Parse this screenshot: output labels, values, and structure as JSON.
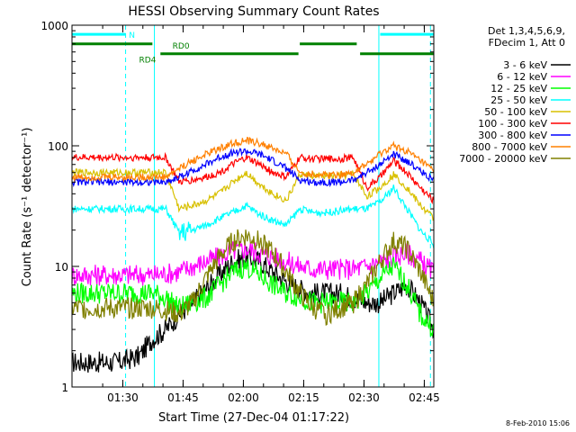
{
  "chart_data": {
    "type": "line",
    "title": "HESSI Observing Summary Count Rates",
    "xlabel": "Start Time (27-Dec-04 01:17:22)",
    "ylabel": "Count Rate (s⁻¹ detector⁻¹)",
    "y_scale": "log",
    "ylim": [
      1,
      1000
    ],
    "xlim": [
      0,
      5400
    ],
    "x_unit": "seconds since 01:17:22",
    "x_ticks": [
      {
        "t": 758,
        "label": "01:30"
      },
      {
        "t": 1658,
        "label": "01:45"
      },
      {
        "t": 2558,
        "label": "02:00"
      },
      {
        "t": 3458,
        "label": "02:15"
      },
      {
        "t": 4358,
        "label": "02:30"
      },
      {
        "t": 5258,
        "label": "02:45"
      }
    ],
    "y_ticks": [
      {
        "v": 1,
        "label": "1"
      },
      {
        "v": 10,
        "label": "10"
      },
      {
        "v": 100,
        "label": "100"
      },
      {
        "v": 1000,
        "label": "1000"
      }
    ],
    "legend": {
      "position": "right",
      "header": [
        "Det 1,3,4,5,6,9,",
        "FDecim 1, Att 0"
      ],
      "entries": [
        {
          "label": "3 - 6 keV",
          "color": "#000000"
        },
        {
          "label": "6 - 12 keV",
          "color": "#ff00ff"
        },
        {
          "label": "12 - 25 keV",
          "color": "#00ff00"
        },
        {
          "label": "25 - 50 keV",
          "color": "#00ffff"
        },
        {
          "label": "50 - 100 keV",
          "color": "#d8c000"
        },
        {
          "label": "100 - 300 keV",
          "color": "#ff0000"
        },
        {
          "label": "300 - 800 keV",
          "color": "#0000ff"
        },
        {
          "label": "800 - 7000 keV",
          "color": "#ff8000"
        },
        {
          "label": "7000 - 20000 keV",
          "color": "#808000"
        }
      ]
    },
    "series": [
      {
        "name": "3 - 6 keV",
        "color": "#000000",
        "x": [
          0,
          400,
          700,
          1000,
          1200,
          1400,
          1600,
          1800,
          2000,
          2200,
          2400,
          2600,
          2800,
          3000,
          3200,
          3400,
          3600,
          3800,
          4000,
          4200,
          4400,
          4600,
          4800,
          5000,
          5200,
          5400
        ],
        "y": [
          1.6,
          1.6,
          1.6,
          1.8,
          2.5,
          3,
          4,
          5,
          6.5,
          8.5,
          11,
          12,
          11,
          9,
          7.5,
          6.5,
          6,
          6,
          6,
          5.5,
          5,
          5,
          6,
          7,
          5,
          3
        ]
      },
      {
        "name": "6 - 12 keV",
        "color": "#ff00ff",
        "x": [
          0,
          800,
          1200,
          1400,
          1600,
          1800,
          2000,
          2200,
          2400,
          2600,
          2800,
          3000,
          3200,
          3400,
          3600,
          3800,
          4000,
          4200,
          4400,
          4600,
          4800,
          5000,
          5200,
          5400
        ],
        "y": [
          8.5,
          8.5,
          8.5,
          8.7,
          9,
          10,
          11,
          12,
          13.5,
          14,
          13,
          12,
          11,
          10,
          9.5,
          9.5,
          9.5,
          9.5,
          10,
          11,
          12,
          13,
          11,
          9
        ]
      },
      {
        "name": "12 - 25 keV",
        "color": "#00ff00",
        "x": [
          0,
          800,
          1200,
          1400,
          1600,
          1800,
          2000,
          2200,
          2400,
          2600,
          2800,
          3000,
          3200,
          3400,
          3600,
          3800,
          4000,
          4200,
          4400,
          4600,
          4800,
          5000,
          5200,
          5400
        ],
        "y": [
          6,
          6,
          6,
          5.5,
          4.5,
          5,
          5.5,
          7,
          9,
          10,
          8.5,
          7,
          6,
          5.5,
          5,
          5,
          5,
          5,
          6,
          8,
          10,
          7,
          4,
          3
        ]
      },
      {
        "name": "25 - 50 keV",
        "color": "#00ffff",
        "x": [
          0,
          800,
          1200,
          1400,
          1600,
          1800,
          2000,
          2200,
          2400,
          2600,
          2800,
          3000,
          3200,
          3400,
          3600,
          3800,
          4000,
          4200,
          4400,
          4600,
          4800,
          5000,
          5200,
          5400
        ],
        "y": [
          30,
          30,
          30,
          30,
          19,
          20,
          22,
          25,
          28,
          32,
          27,
          24,
          22,
          30,
          28,
          28,
          29,
          30,
          30,
          34,
          45,
          30,
          20,
          15
        ]
      },
      {
        "name": "50 - 100 keV",
        "color": "#d8c000",
        "x": [
          0,
          800,
          1200,
          1400,
          1600,
          1800,
          2000,
          2200,
          2400,
          2600,
          2800,
          3000,
          3200,
          3400,
          3600,
          3800,
          4000,
          4200,
          4400,
          4600,
          4800,
          5000,
          5200,
          5400
        ],
        "y": [
          60,
          60,
          60,
          60,
          30,
          32,
          35,
          40,
          50,
          60,
          48,
          40,
          35,
          58,
          56,
          56,
          56,
          58,
          38,
          45,
          58,
          45,
          32,
          25
        ]
      },
      {
        "name": "100 - 300 keV",
        "color": "#ff0000",
        "x": [
          0,
          800,
          1200,
          1400,
          1600,
          1800,
          2000,
          2200,
          2400,
          2600,
          2800,
          3000,
          3200,
          3400,
          3600,
          3800,
          4000,
          4200,
          4400,
          4600,
          4800,
          5000,
          5200,
          5400
        ],
        "y": [
          80,
          80,
          80,
          80,
          50,
          52,
          55,
          60,
          70,
          80,
          70,
          60,
          55,
          80,
          78,
          78,
          78,
          80,
          45,
          55,
          75,
          60,
          45,
          35
        ]
      },
      {
        "name": "300 - 800 keV",
        "color": "#0000ff",
        "x": [
          0,
          800,
          1200,
          1400,
          1600,
          1800,
          2000,
          2200,
          2400,
          2600,
          2800,
          3000,
          3200,
          3400,
          3600,
          3800,
          4000,
          4200,
          4400,
          4600,
          4800,
          5000,
          5200,
          5400
        ],
        "y": [
          50,
          50,
          50,
          50,
          55,
          62,
          70,
          80,
          88,
          90,
          85,
          75,
          65,
          52,
          50,
          50,
          50,
          52,
          60,
          70,
          85,
          75,
          62,
          52
        ]
      },
      {
        "name": "800 - 7000 keV",
        "color": "#ff8000",
        "x": [
          0,
          800,
          1200,
          1400,
          1600,
          1800,
          2000,
          2200,
          2400,
          2600,
          2800,
          3000,
          3200,
          3400,
          3600,
          3800,
          4000,
          4200,
          4400,
          4600,
          4800,
          5000,
          5200,
          5400
        ],
        "y": [
          55,
          55,
          55,
          55,
          65,
          75,
          85,
          95,
          105,
          110,
          105,
          95,
          85,
          60,
          58,
          58,
          58,
          60,
          70,
          85,
          100,
          90,
          75,
          62
        ]
      },
      {
        "name": "7000 - 20000 keV",
        "color": "#808000",
        "x": [
          0,
          800,
          1200,
          1400,
          1600,
          1800,
          2000,
          2200,
          2400,
          2600,
          2800,
          3000,
          3200,
          3400,
          3600,
          3800,
          4000,
          4200,
          4400,
          4600,
          4800,
          5000,
          5200,
          5400
        ],
        "y": [
          4.5,
          4.5,
          4.5,
          4.3,
          4,
          5,
          8,
          12,
          16,
          18,
          16,
          13,
          9,
          6,
          4.5,
          4,
          4.5,
          5,
          7,
          11,
          16,
          14,
          9,
          5
        ]
      }
    ],
    "orbit_flags": [
      {
        "label": "N",
        "color": "#00ffff",
        "level": 840,
        "segments": [
          [
            0,
            800
          ],
          [
            4600,
            5400
          ]
        ]
      },
      {
        "label": "RD0",
        "color": "#008000",
        "level": 700,
        "segments": [
          [
            0,
            1200
          ],
          [
            3400,
            4250
          ]
        ]
      },
      {
        "label": "RD4",
        "color": "#008000",
        "level": 580,
        "segments": [
          [
            1320,
            3380
          ],
          [
            4300,
            5400
          ]
        ]
      }
    ],
    "vertical_markers": [
      {
        "t": 800,
        "style": "dashed"
      },
      {
        "t": 1230,
        "style": "solid"
      },
      {
        "t": 4580,
        "style": "solid"
      },
      {
        "t": 5350,
        "style": "dashed"
      }
    ],
    "footer": "8-Feb-2010 15:06"
  }
}
